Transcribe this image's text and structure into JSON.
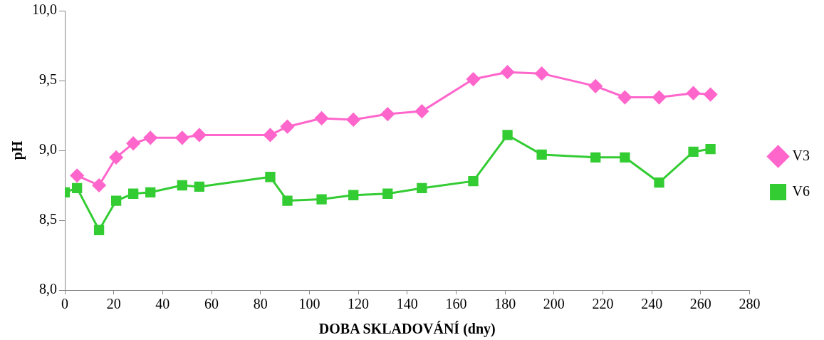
{
  "chart_data": {
    "type": "line",
    "xlabel": "DOBA SKLADOVÁNÍ (dny)",
    "ylabel": "pH",
    "xlim": [
      0,
      280
    ],
    "xticks": [
      0,
      20,
      40,
      60,
      80,
      100,
      120,
      140,
      160,
      180,
      200,
      220,
      240,
      260,
      280
    ],
    "ylim": [
      8,
      10
    ],
    "yticks": [
      {
        "value": 8,
        "label": "8,0"
      },
      {
        "value": 8.5,
        "label": "8,5"
      },
      {
        "value": 9,
        "label": "9,0"
      },
      {
        "value": 9.5,
        "label": "9,5"
      },
      {
        "value": 10,
        "label": "10,0"
      }
    ],
    "grid": false,
    "legend": "right",
    "series": [
      {
        "name": "V3",
        "color": "#ff66cc",
        "marker": "diamond",
        "x": [
          5,
          14,
          21,
          28,
          35,
          48,
          55,
          84,
          91,
          105,
          118,
          132,
          146,
          167,
          181,
          195,
          217,
          229,
          243,
          257,
          264
        ],
        "values": [
          8.82,
          8.75,
          8.95,
          9.05,
          9.09,
          9.09,
          9.11,
          9.11,
          9.17,
          9.23,
          9.22,
          9.26,
          9.28,
          9.51,
          9.56,
          9.55,
          9.46,
          9.38,
          9.38,
          9.41,
          9.4
        ]
      },
      {
        "name": "V6",
        "color": "#33cc33",
        "marker": "square",
        "x": [
          0,
          5,
          14,
          21,
          28,
          35,
          48,
          55,
          84,
          91,
          105,
          118,
          132,
          146,
          167,
          181,
          195,
          217,
          229,
          243,
          257,
          264
        ],
        "values": [
          8.7,
          8.73,
          8.43,
          8.64,
          8.69,
          8.7,
          8.75,
          8.74,
          8.81,
          8.64,
          8.65,
          8.68,
          8.69,
          8.73,
          8.78,
          9.11,
          8.97,
          8.95,
          8.95,
          8.77,
          8.99,
          9.01
        ]
      }
    ]
  }
}
